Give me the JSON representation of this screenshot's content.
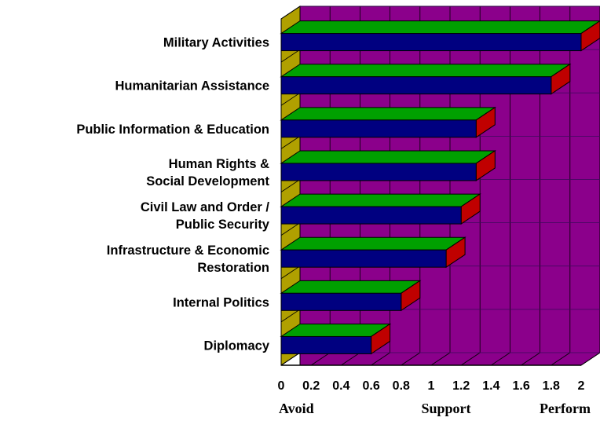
{
  "chart_data": {
    "type": "bar",
    "orientation": "horizontal",
    "style": "3d",
    "categories": [
      [
        "Military Activities"
      ],
      [
        "Humanitarian Assistance"
      ],
      [
        "Public Information & Education"
      ],
      [
        "Human Rights &",
        "Social Development"
      ],
      [
        "Civil Law and Order /",
        "Public Security"
      ],
      [
        "Infrastructure & Economic",
        "Restoration"
      ],
      [
        "Internal Politics"
      ],
      [
        "Diplomacy"
      ]
    ],
    "values": [
      2.0,
      1.8,
      1.3,
      1.3,
      1.2,
      1.1,
      0.8,
      0.6
    ],
    "xlim": [
      0,
      2
    ],
    "x_ticks": [
      "0",
      "0.2",
      "0.4",
      "0.6",
      "0.8",
      "1",
      "1.2",
      "1.4",
      "1.6",
      "1.8",
      "2"
    ],
    "scale_labels": [
      "Avoid",
      "Support",
      "Perform"
    ],
    "grid": true,
    "colors": {
      "wall": "#8b008b",
      "floor": "#b0a000",
      "bar_front": "#000080",
      "bar_top": "#00a000",
      "bar_end": "#c00000",
      "gridline": "#000000"
    }
  }
}
